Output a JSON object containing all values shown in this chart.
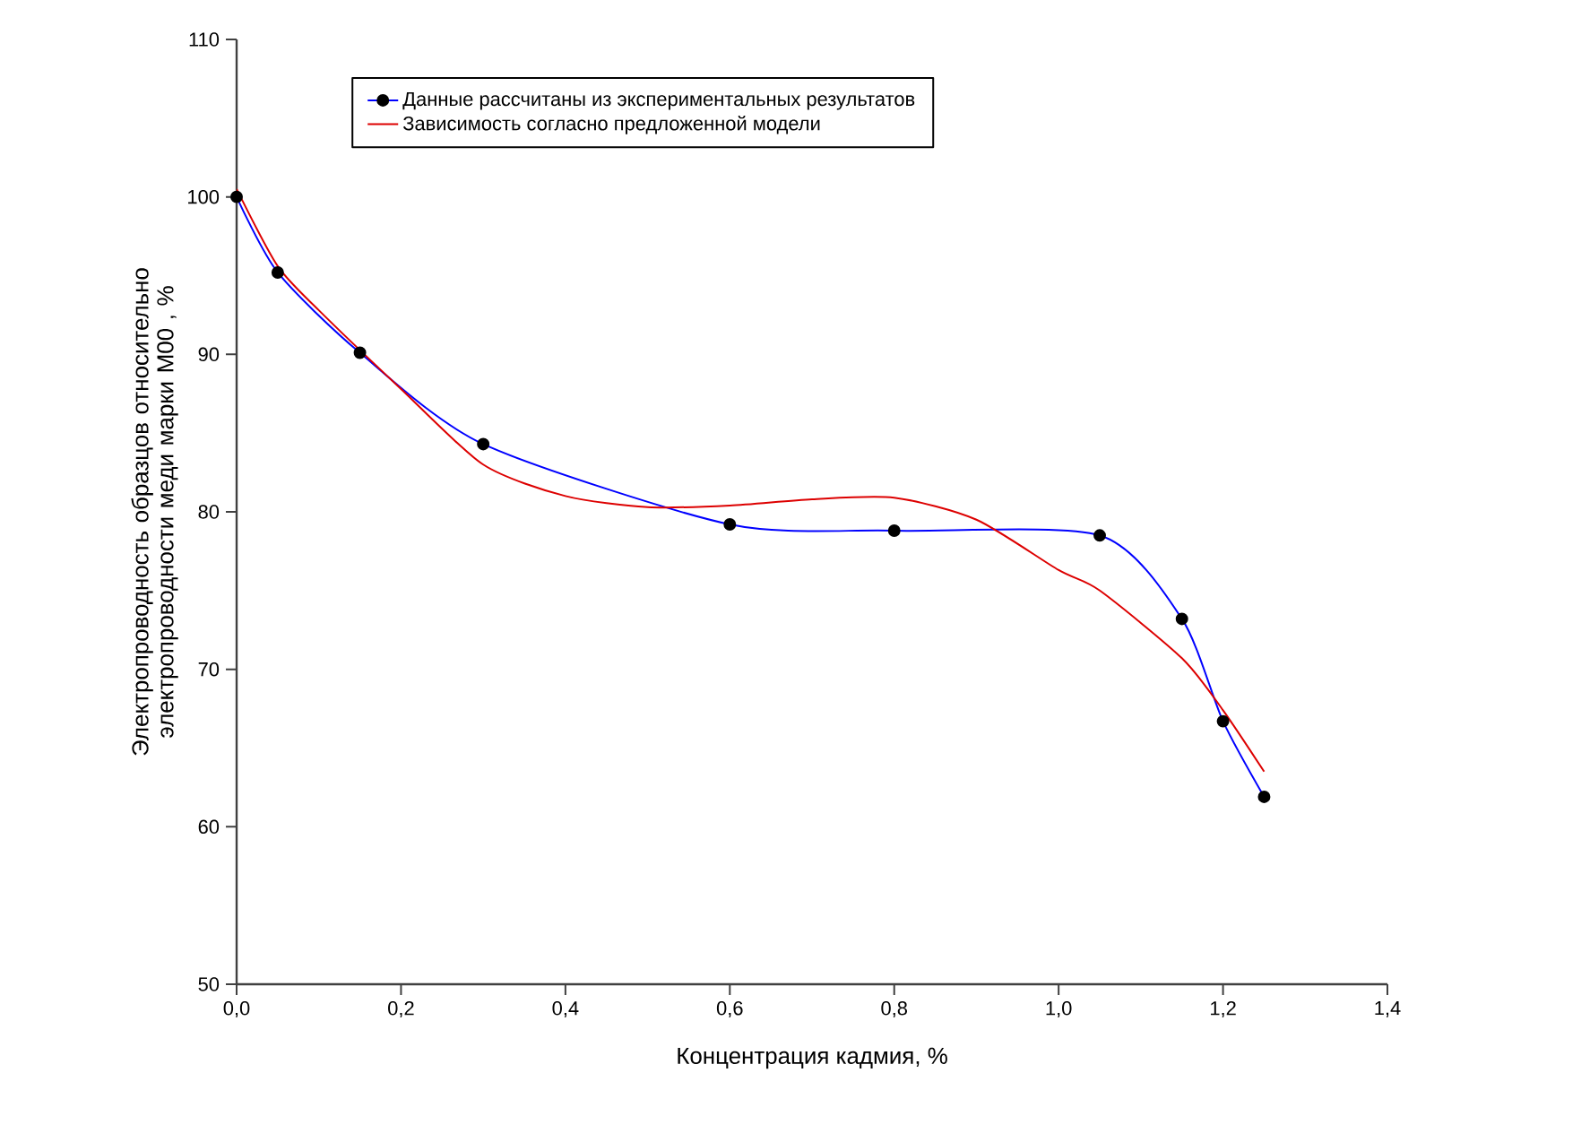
{
  "chart_data": {
    "type": "line",
    "xlabel": "Концентрация кадмия, %",
    "ylabel": "Электропроводность образцов относительно электропроводности меди марки М00 , %",
    "xlim": [
      0,
      1.4
    ],
    "xticks": [
      {
        "value": 0,
        "label": "0,0"
      },
      {
        "value": 0.2,
        "label": "0,2"
      },
      {
        "value": 0.4,
        "label": "0,4"
      },
      {
        "value": 0.6,
        "label": "0,6"
      },
      {
        "value": 0.8,
        "label": "0,8"
      },
      {
        "value": 1.0,
        "label": "1,0"
      },
      {
        "value": 1.2,
        "label": "1,2"
      },
      {
        "value": 1.4,
        "label": "1,4"
      }
    ],
    "ylim": [
      50,
      110
    ],
    "yticks": [
      50,
      60,
      70,
      80,
      90,
      100,
      110
    ],
    "legend": "top",
    "grid": false,
    "series": [
      {
        "name": "Данные рассчитаны из экспериментальных результатов",
        "color": "#0000ff",
        "marker": "circle",
        "x": [
          0,
          0.05,
          0.15,
          0.3,
          0.6,
          0.8,
          1.05,
          1.15,
          1.2,
          1.25
        ],
        "values": [
          100,
          95.2,
          90.1,
          84.3,
          79.2,
          78.8,
          78.5,
          73.2,
          66.7,
          61.9
        ]
      },
      {
        "name": "Зависимость согласно предложенной модели",
        "color": "#dd0000",
        "marker": "none",
        "x": [
          0,
          0.05,
          0.1,
          0.2,
          0.3,
          0.4,
          0.5,
          0.6,
          0.7,
          0.8,
          0.9,
          1.0,
          1.05,
          1.15,
          1.2,
          1.25
        ],
        "values": [
          100.5,
          95.6,
          92.8,
          87.8,
          83.0,
          81.0,
          80.3,
          80.4,
          80.8,
          80.9,
          79.5,
          76.3,
          75.0,
          70.7,
          67.4,
          63.5
        ]
      }
    ]
  }
}
